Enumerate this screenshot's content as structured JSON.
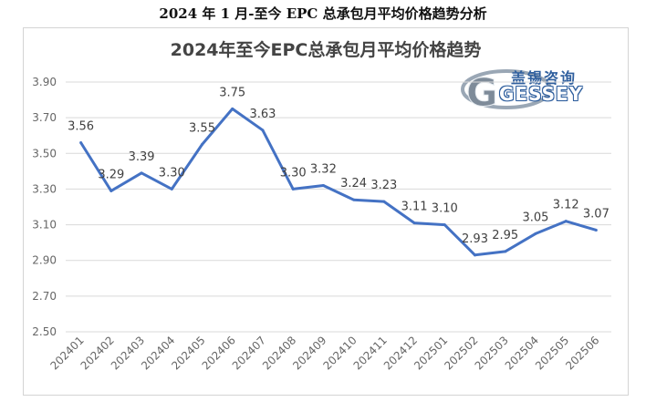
{
  "page_title": "2024 年 1 月-至今 EPC 总承包月平均价格趋势分析",
  "logo": {
    "cn_text": "盖锡咨询",
    "en_text": "GESSEY",
    "letter": "G"
  },
  "chart_data": {
    "type": "line",
    "title": "2024年至今EPC总承包月平均价格趋势",
    "xlabel": "",
    "ylabel": "",
    "categories": [
      "202401",
      "202402",
      "202403",
      "202404",
      "202405",
      "202406",
      "202407",
      "202408",
      "202409",
      "202410",
      "202411",
      "202412",
      "202501",
      "202502",
      "202503",
      "202504",
      "202505",
      "202506"
    ],
    "values": [
      3.56,
      3.29,
      3.39,
      3.3,
      3.55,
      3.75,
      3.63,
      3.3,
      3.32,
      3.24,
      3.23,
      3.11,
      3.1,
      2.93,
      2.95,
      3.05,
      3.12,
      3.07
    ],
    "value_labels": [
      "3.56",
      "3.29",
      "3.39",
      "3.30",
      "3.55",
      "3.75",
      "3.63",
      "3.30",
      "3.32",
      "3.24",
      "3.23",
      "3.11",
      "3.10",
      "2.93",
      "2.95",
      "3.05",
      "3.12",
      "3.07"
    ],
    "ylim": [
      2.5,
      3.9
    ],
    "yticks": [
      "2.50",
      "2.70",
      "2.90",
      "3.10",
      "3.30",
      "3.50",
      "3.70",
      "3.90"
    ],
    "grid": true,
    "legend": "none",
    "line_color": "#4472c4"
  }
}
